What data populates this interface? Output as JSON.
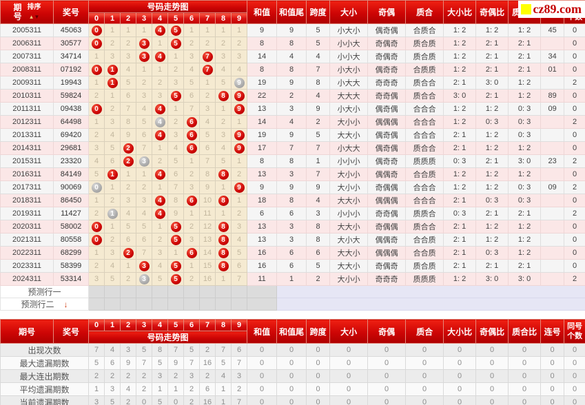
{
  "watermark": {
    "site": "cz89.com"
  },
  "colors": {
    "header_red": "#cd0505",
    "ball_red": "#cc0404",
    "ball_gray": "#ababab",
    "trend_bg": "#f5ead1",
    "row_pink": "#fbe7e7",
    "pred_gray": "#dcdcdc",
    "pred_lavender": "#e6e6f5"
  },
  "top_header": {
    "period": "期号",
    "sort": "排序",
    "prize": "奖号",
    "trend_title": "号码走势图",
    "digits": [
      "0",
      "1",
      "2",
      "3",
      "4",
      "5",
      "6",
      "7",
      "8",
      "9"
    ],
    "sum": "和值",
    "sum_tail": "和值尾",
    "span": "跨度",
    "size": "大小",
    "parity": "奇偶",
    "prime": "质合",
    "size_ratio": "大小比",
    "parity_ratio": "奇偶比",
    "prime_ratio": "质合比",
    "consecutive": "连号",
    "same_line1": "同号",
    "same_line2": "个数"
  },
  "rows": [
    {
      "period": "2005311",
      "prize": "45063",
      "trend": [
        "R0",
        "1",
        "1",
        "1",
        "R4",
        "R5",
        "1",
        "1",
        "1",
        "1"
      ],
      "sum": "9",
      "sum_tail": "9",
      "span": "5",
      "size": "小大小",
      "parity": "偶奇偶",
      "prime": "合质合",
      "size_ratio": "1: 2",
      "parity_ratio": "1: 2",
      "prime_ratio": "1: 2",
      "consecutive": "45",
      "same_count": "0"
    },
    {
      "period": "2006311",
      "prize": "30577",
      "trend": [
        "R0",
        "2",
        "2",
        "R3",
        "1",
        "R5",
        "2",
        "2",
        "2",
        "2"
      ],
      "sum": "8",
      "sum_tail": "8",
      "span": "5",
      "size": "小小大",
      "parity": "奇偶奇",
      "prime": "质合质",
      "size_ratio": "1: 2",
      "parity_ratio": "2: 1",
      "prime_ratio": "2: 1",
      "consecutive": "",
      "same_count": "0"
    },
    {
      "period": "2007311",
      "prize": "34714",
      "trend": [
        "1",
        "3",
        "3",
        "R3",
        "R4",
        "1",
        "3",
        "R7",
        "3",
        "3"
      ],
      "sum": "14",
      "sum_tail": "4",
      "span": "4",
      "size": "小小大",
      "parity": "奇偶奇",
      "prime": "质合质",
      "size_ratio": "1: 2",
      "parity_ratio": "2: 1",
      "prime_ratio": "2: 1",
      "consecutive": "34",
      "same_count": "0"
    },
    {
      "period": "2008311",
      "prize": "07192",
      "trend": [
        "R0",
        "R1",
        "4",
        "1",
        "1",
        "2",
        "4",
        "R7",
        "4",
        "4"
      ],
      "sum": "8",
      "sum_tail": "8",
      "span": "7",
      "size": "小大小",
      "parity": "偶奇奇",
      "prime": "合质质",
      "size_ratio": "1: 2",
      "parity_ratio": "2: 1",
      "prime_ratio": "2: 1",
      "consecutive": "01",
      "same_count": "0"
    },
    {
      "period": "2009311",
      "prize": "19943",
      "trend": [
        "1",
        "R1",
        "5",
        "2",
        "2",
        "3",
        "5",
        "1",
        "5",
        "G9"
      ],
      "sum": "19",
      "sum_tail": "9",
      "span": "8",
      "size": "小大大",
      "parity": "奇奇奇",
      "prime": "质合合",
      "size_ratio": "2: 1",
      "parity_ratio": "3: 0",
      "prime_ratio": "1: 2",
      "consecutive": "",
      "same_count": "2"
    },
    {
      "period": "2010311",
      "prize": "59824",
      "trend": [
        "2",
        "1",
        "6",
        "3",
        "3",
        "R5",
        "6",
        "2",
        "R8",
        "R9"
      ],
      "sum": "22",
      "sum_tail": "2",
      "span": "4",
      "size": "大大大",
      "parity": "奇奇偶",
      "prime": "质合合",
      "size_ratio": "3: 0",
      "parity_ratio": "2: 1",
      "prime_ratio": "1: 2",
      "consecutive": "89",
      "same_count": "0"
    },
    {
      "period": "2011311",
      "prize": "09438",
      "trend": [
        "R0",
        "2",
        "7",
        "4",
        "R4",
        "1",
        "7",
        "3",
        "1",
        "R9"
      ],
      "sum": "13",
      "sum_tail": "3",
      "span": "9",
      "size": "小大小",
      "parity": "偶奇偶",
      "prime": "合合合",
      "size_ratio": "1: 2",
      "parity_ratio": "1: 2",
      "prime_ratio": "0: 3",
      "consecutive": "09",
      "same_count": "0"
    },
    {
      "period": "2012311",
      "prize": "64498",
      "trend": [
        "1",
        "3",
        "8",
        "5",
        "G4",
        "2",
        "R6",
        "4",
        "2",
        "1"
      ],
      "sum": "14",
      "sum_tail": "4",
      "span": "2",
      "size": "大小小",
      "parity": "偶偶偶",
      "prime": "合合合",
      "size_ratio": "1: 2",
      "parity_ratio": "0: 3",
      "prime_ratio": "0: 3",
      "consecutive": "",
      "same_count": "2"
    },
    {
      "period": "2013311",
      "prize": "69420",
      "trend": [
        "2",
        "4",
        "9",
        "6",
        "R4",
        "3",
        "R6",
        "5",
        "3",
        "R9"
      ],
      "sum": "19",
      "sum_tail": "9",
      "span": "5",
      "size": "大大小",
      "parity": "偶奇偶",
      "prime": "合合合",
      "size_ratio": "2: 1",
      "parity_ratio": "1: 2",
      "prime_ratio": "0: 3",
      "consecutive": "",
      "same_count": "0"
    },
    {
      "period": "2014311",
      "prize": "29681",
      "trend": [
        "3",
        "5",
        "R2",
        "7",
        "1",
        "4",
        "R6",
        "6",
        "4",
        "R9"
      ],
      "sum": "17",
      "sum_tail": "7",
      "span": "7",
      "size": "小大大",
      "parity": "偶奇偶",
      "prime": "质合合",
      "size_ratio": "2: 1",
      "parity_ratio": "1: 2",
      "prime_ratio": "1: 2",
      "consecutive": "",
      "same_count": "0"
    },
    {
      "period": "2015311",
      "prize": "23320",
      "trend": [
        "4",
        "6",
        "R2",
        "G3",
        "2",
        "5",
        "1",
        "7",
        "5",
        "1"
      ],
      "sum": "8",
      "sum_tail": "8",
      "span": "1",
      "size": "小小小",
      "parity": "偶奇奇",
      "prime": "质质质",
      "size_ratio": "0: 3",
      "parity_ratio": "2: 1",
      "prime_ratio": "3: 0",
      "consecutive": "23",
      "same_count": "2"
    },
    {
      "period": "2016311",
      "prize": "84149",
      "trend": [
        "5",
        "R1",
        "1",
        "1",
        "R4",
        "6",
        "2",
        "8",
        "R8",
        "2"
      ],
      "sum": "13",
      "sum_tail": "3",
      "span": "7",
      "size": "大小小",
      "parity": "偶偶奇",
      "prime": "合合质",
      "size_ratio": "1: 2",
      "parity_ratio": "1: 2",
      "prime_ratio": "1: 2",
      "consecutive": "",
      "same_count": "0"
    },
    {
      "period": "2017311",
      "prize": "90069",
      "trend": [
        "G0",
        "1",
        "2",
        "2",
        "1",
        "7",
        "3",
        "9",
        "1",
        "R9"
      ],
      "sum": "9",
      "sum_tail": "9",
      "span": "9",
      "size": "大小小",
      "parity": "奇偶偶",
      "prime": "合合合",
      "size_ratio": "1: 2",
      "parity_ratio": "1: 2",
      "prime_ratio": "0: 3",
      "consecutive": "09",
      "same_count": "2"
    },
    {
      "period": "2018311",
      "prize": "86450",
      "trend": [
        "1",
        "2",
        "3",
        "3",
        "R4",
        "8",
        "R6",
        "10",
        "R8",
        "1"
      ],
      "sum": "18",
      "sum_tail": "8",
      "span": "4",
      "size": "大大小",
      "parity": "偶偶偶",
      "prime": "合合合",
      "size_ratio": "2: 1",
      "parity_ratio": "0: 3",
      "prime_ratio": "0: 3",
      "consecutive": "",
      "same_count": "0"
    },
    {
      "period": "2019311",
      "prize": "11427",
      "trend": [
        "2",
        "G1",
        "4",
        "4",
        "R4",
        "9",
        "1",
        "11",
        "1",
        "2"
      ],
      "sum": "6",
      "sum_tail": "6",
      "span": "3",
      "size": "小小小",
      "parity": "奇奇偶",
      "prime": "质质合",
      "size_ratio": "0: 3",
      "parity_ratio": "2: 1",
      "prime_ratio": "2: 1",
      "consecutive": "",
      "same_count": "2"
    },
    {
      "period": "2020311",
      "prize": "58002",
      "trend": [
        "R0",
        "1",
        "5",
        "5",
        "1",
        "R5",
        "2",
        "12",
        "R8",
        "3"
      ],
      "sum": "13",
      "sum_tail": "3",
      "span": "8",
      "size": "大大小",
      "parity": "奇偶偶",
      "prime": "质合合",
      "size_ratio": "2: 1",
      "parity_ratio": "1: 2",
      "prime_ratio": "1: 2",
      "consecutive": "",
      "same_count": "0"
    },
    {
      "period": "2021311",
      "prize": "80558",
      "trend": [
        "R0",
        "2",
        "6",
        "6",
        "2",
        "R5",
        "3",
        "13",
        "R8",
        "4"
      ],
      "sum": "13",
      "sum_tail": "3",
      "span": "8",
      "size": "大小大",
      "parity": "偶偶奇",
      "prime": "合合质",
      "size_ratio": "2: 1",
      "parity_ratio": "1: 2",
      "prime_ratio": "1: 2",
      "consecutive": "",
      "same_count": "0"
    },
    {
      "period": "2022311",
      "prize": "68299",
      "trend": [
        "1",
        "3",
        "R2",
        "7",
        "3",
        "1",
        "R6",
        "14",
        "R8",
        "5"
      ],
      "sum": "16",
      "sum_tail": "6",
      "span": "6",
      "size": "大大小",
      "parity": "偶偶偶",
      "prime": "合合质",
      "size_ratio": "2: 1",
      "parity_ratio": "0: 3",
      "prime_ratio": "1: 2",
      "consecutive": "",
      "same_count": "0"
    },
    {
      "period": "2023311",
      "prize": "58399",
      "trend": [
        "2",
        "4",
        "1",
        "R3",
        "4",
        "R5",
        "1",
        "15",
        "R8",
        "6"
      ],
      "sum": "16",
      "sum_tail": "6",
      "span": "5",
      "size": "大大小",
      "parity": "奇偶奇",
      "prime": "质合质",
      "size_ratio": "2: 1",
      "parity_ratio": "2: 1",
      "prime_ratio": "2: 1",
      "consecutive": "",
      "same_count": "0"
    },
    {
      "period": "2024311",
      "prize": "53314",
      "trend": [
        "3",
        "5",
        "2",
        "G3",
        "5",
        "R5",
        "2",
        "16",
        "1",
        "7"
      ],
      "sum": "11",
      "sum_tail": "1",
      "span": "2",
      "size": "大小小",
      "parity": "奇奇奇",
      "prime": "质质质",
      "size_ratio": "1: 2",
      "parity_ratio": "3: 0",
      "prime_ratio": "3: 0",
      "consecutive": "",
      "same_count": "2"
    }
  ],
  "prediction_rows": [
    {
      "label": "预测行一",
      "arrow": false
    },
    {
      "label": "预测行二",
      "arrow": true
    }
  ],
  "stats_rows": [
    {
      "label": "出现次数",
      "trend": [
        "7",
        "4",
        "3",
        "5",
        "8",
        "7",
        "5",
        "2",
        "7",
        "6"
      ],
      "right": [
        "0",
        "0",
        "0",
        "0",
        "0",
        "0",
        "0",
        "0",
        "0",
        "0",
        "0"
      ]
    },
    {
      "label": "最大遗漏期数",
      "trend": [
        "5",
        "6",
        "9",
        "7",
        "5",
        "9",
        "7",
        "16",
        "5",
        "7"
      ],
      "right": [
        "0",
        "0",
        "0",
        "0",
        "0",
        "0",
        "0",
        "0",
        "0",
        "0",
        "0"
      ]
    },
    {
      "label": "最大连出期数",
      "trend": [
        "2",
        "2",
        "2",
        "2",
        "3",
        "2",
        "3",
        "2",
        "4",
        "3"
      ],
      "right": [
        "0",
        "0",
        "0",
        "0",
        "0",
        "0",
        "0",
        "0",
        "0",
        "0",
        "0"
      ]
    },
    {
      "label": "平均遗漏期数",
      "trend": [
        "1",
        "3",
        "4",
        "2",
        "1",
        "1",
        "2",
        "6",
        "1",
        "2"
      ],
      "right": [
        "0",
        "0",
        "0",
        "0",
        "0",
        "0",
        "0",
        "0",
        "0",
        "0",
        "0"
      ]
    },
    {
      "label": "当前遗漏期数",
      "trend": [
        "3",
        "5",
        "2",
        "0",
        "5",
        "0",
        "2",
        "16",
        "1",
        "7"
      ],
      "right": [
        "0",
        "0",
        "0",
        "0",
        "0",
        "0",
        "0",
        "0",
        "0",
        "0",
        "0"
      ]
    }
  ]
}
